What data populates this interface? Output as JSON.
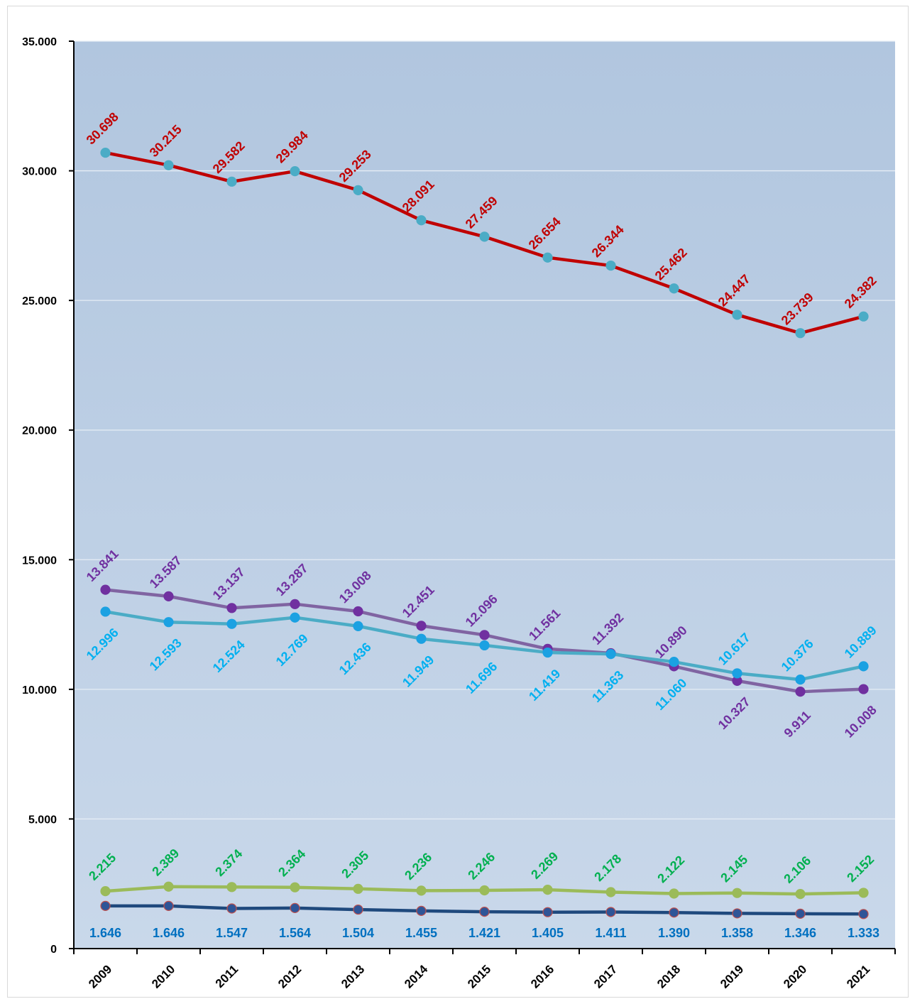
{
  "chart_data": {
    "type": "line",
    "title": "",
    "xlabel": "",
    "ylabel": "",
    "categories": [
      "2009",
      "2010",
      "2011",
      "2012",
      "2013",
      "2014",
      "2015",
      "2016",
      "2017",
      "2018",
      "2019",
      "2020",
      "2021"
    ],
    "ylim": [
      0,
      35000
    ],
    "yticks": [
      0,
      5000,
      10000,
      15000,
      20000,
      25000,
      30000,
      35000
    ],
    "ytick_labels": [
      "0",
      "5.000",
      "10.000",
      "15.000",
      "20.000",
      "25.000",
      "30.000",
      "35.000"
    ],
    "grid": true,
    "legend": "none",
    "series": [
      {
        "values": [
          30698,
          30215,
          29582,
          29984,
          29253,
          28091,
          27459,
          26654,
          26344,
          25462,
          24447,
          23739,
          24382
        ],
        "labels": [
          "30.698",
          "30.215",
          "29.582",
          "29.984",
          "29.253",
          "28.091",
          "27.459",
          "26.654",
          "26.344",
          "25.462",
          "24.447",
          "23.739",
          "24.382"
        ],
        "line_color": "#c00000",
        "marker_color": "#4bacc6",
        "label_color": "#c00000",
        "label_position": "above"
      },
      {
        "values": [
          13841,
          13587,
          13137,
          13287,
          13008,
          12451,
          12096,
          11561,
          11392,
          10890,
          10327,
          9911,
          10008
        ],
        "labels": [
          "13.841",
          "13.587",
          "13.137",
          "13.287",
          "13.008",
          "12.451",
          "12.096",
          "11.561",
          "11.392",
          "10.890",
          "10.327",
          "9.911",
          "10.008"
        ],
        "line_color": "#8064a2",
        "marker_color": "#7030a0",
        "label_color": "#7030a0",
        "label_position": [
          "above",
          "above",
          "above",
          "above",
          "above",
          "above",
          "above",
          "above",
          "above",
          "above",
          "below",
          "below",
          "below"
        ]
      },
      {
        "values": [
          12996,
          12593,
          12524,
          12769,
          12436,
          11949,
          11696,
          11419,
          11363,
          11060,
          10617,
          10376,
          10889
        ],
        "labels": [
          "12.996",
          "12.593",
          "12.524",
          "12.769",
          "12.436",
          "11.949",
          "11.696",
          "11.419",
          "11.363",
          "11.060",
          "10.617",
          "10.376",
          "10.889"
        ],
        "line_color": "#4bacc6",
        "marker_color": "#1ba1e2",
        "label_color": "#00b0f0",
        "label_position": [
          "below",
          "below",
          "below",
          "below",
          "below",
          "below",
          "below",
          "below",
          "below",
          "below",
          "above",
          "above",
          "above"
        ]
      },
      {
        "values": [
          2215,
          2389,
          2374,
          2364,
          2305,
          2236,
          2246,
          2269,
          2178,
          2122,
          2145,
          2106,
          2152
        ],
        "labels": [
          "2.215",
          "2.389",
          "2.374",
          "2.364",
          "2.305",
          "2.236",
          "2.246",
          "2.269",
          "2.178",
          "2.122",
          "2.145",
          "2.106",
          "2.152"
        ],
        "line_color": "#9bbb59",
        "marker_color": "#9bbb59",
        "label_color": "#00b050",
        "label_position": "above"
      },
      {
        "values": [
          1646,
          1646,
          1547,
          1564,
          1504,
          1455,
          1421,
          1405,
          1411,
          1390,
          1358,
          1346,
          1333
        ],
        "labels": [
          "1.646",
          "1.646",
          "1.547",
          "1.564",
          "1.504",
          "1.455",
          "1.421",
          "1.405",
          "1.411",
          "1.390",
          "1.358",
          "1.346",
          "1.333"
        ],
        "line_color": "#1f497d",
        "marker_color": "#2f5597",
        "label_color": "#0070c0",
        "label_position": "below_flat"
      }
    ]
  }
}
